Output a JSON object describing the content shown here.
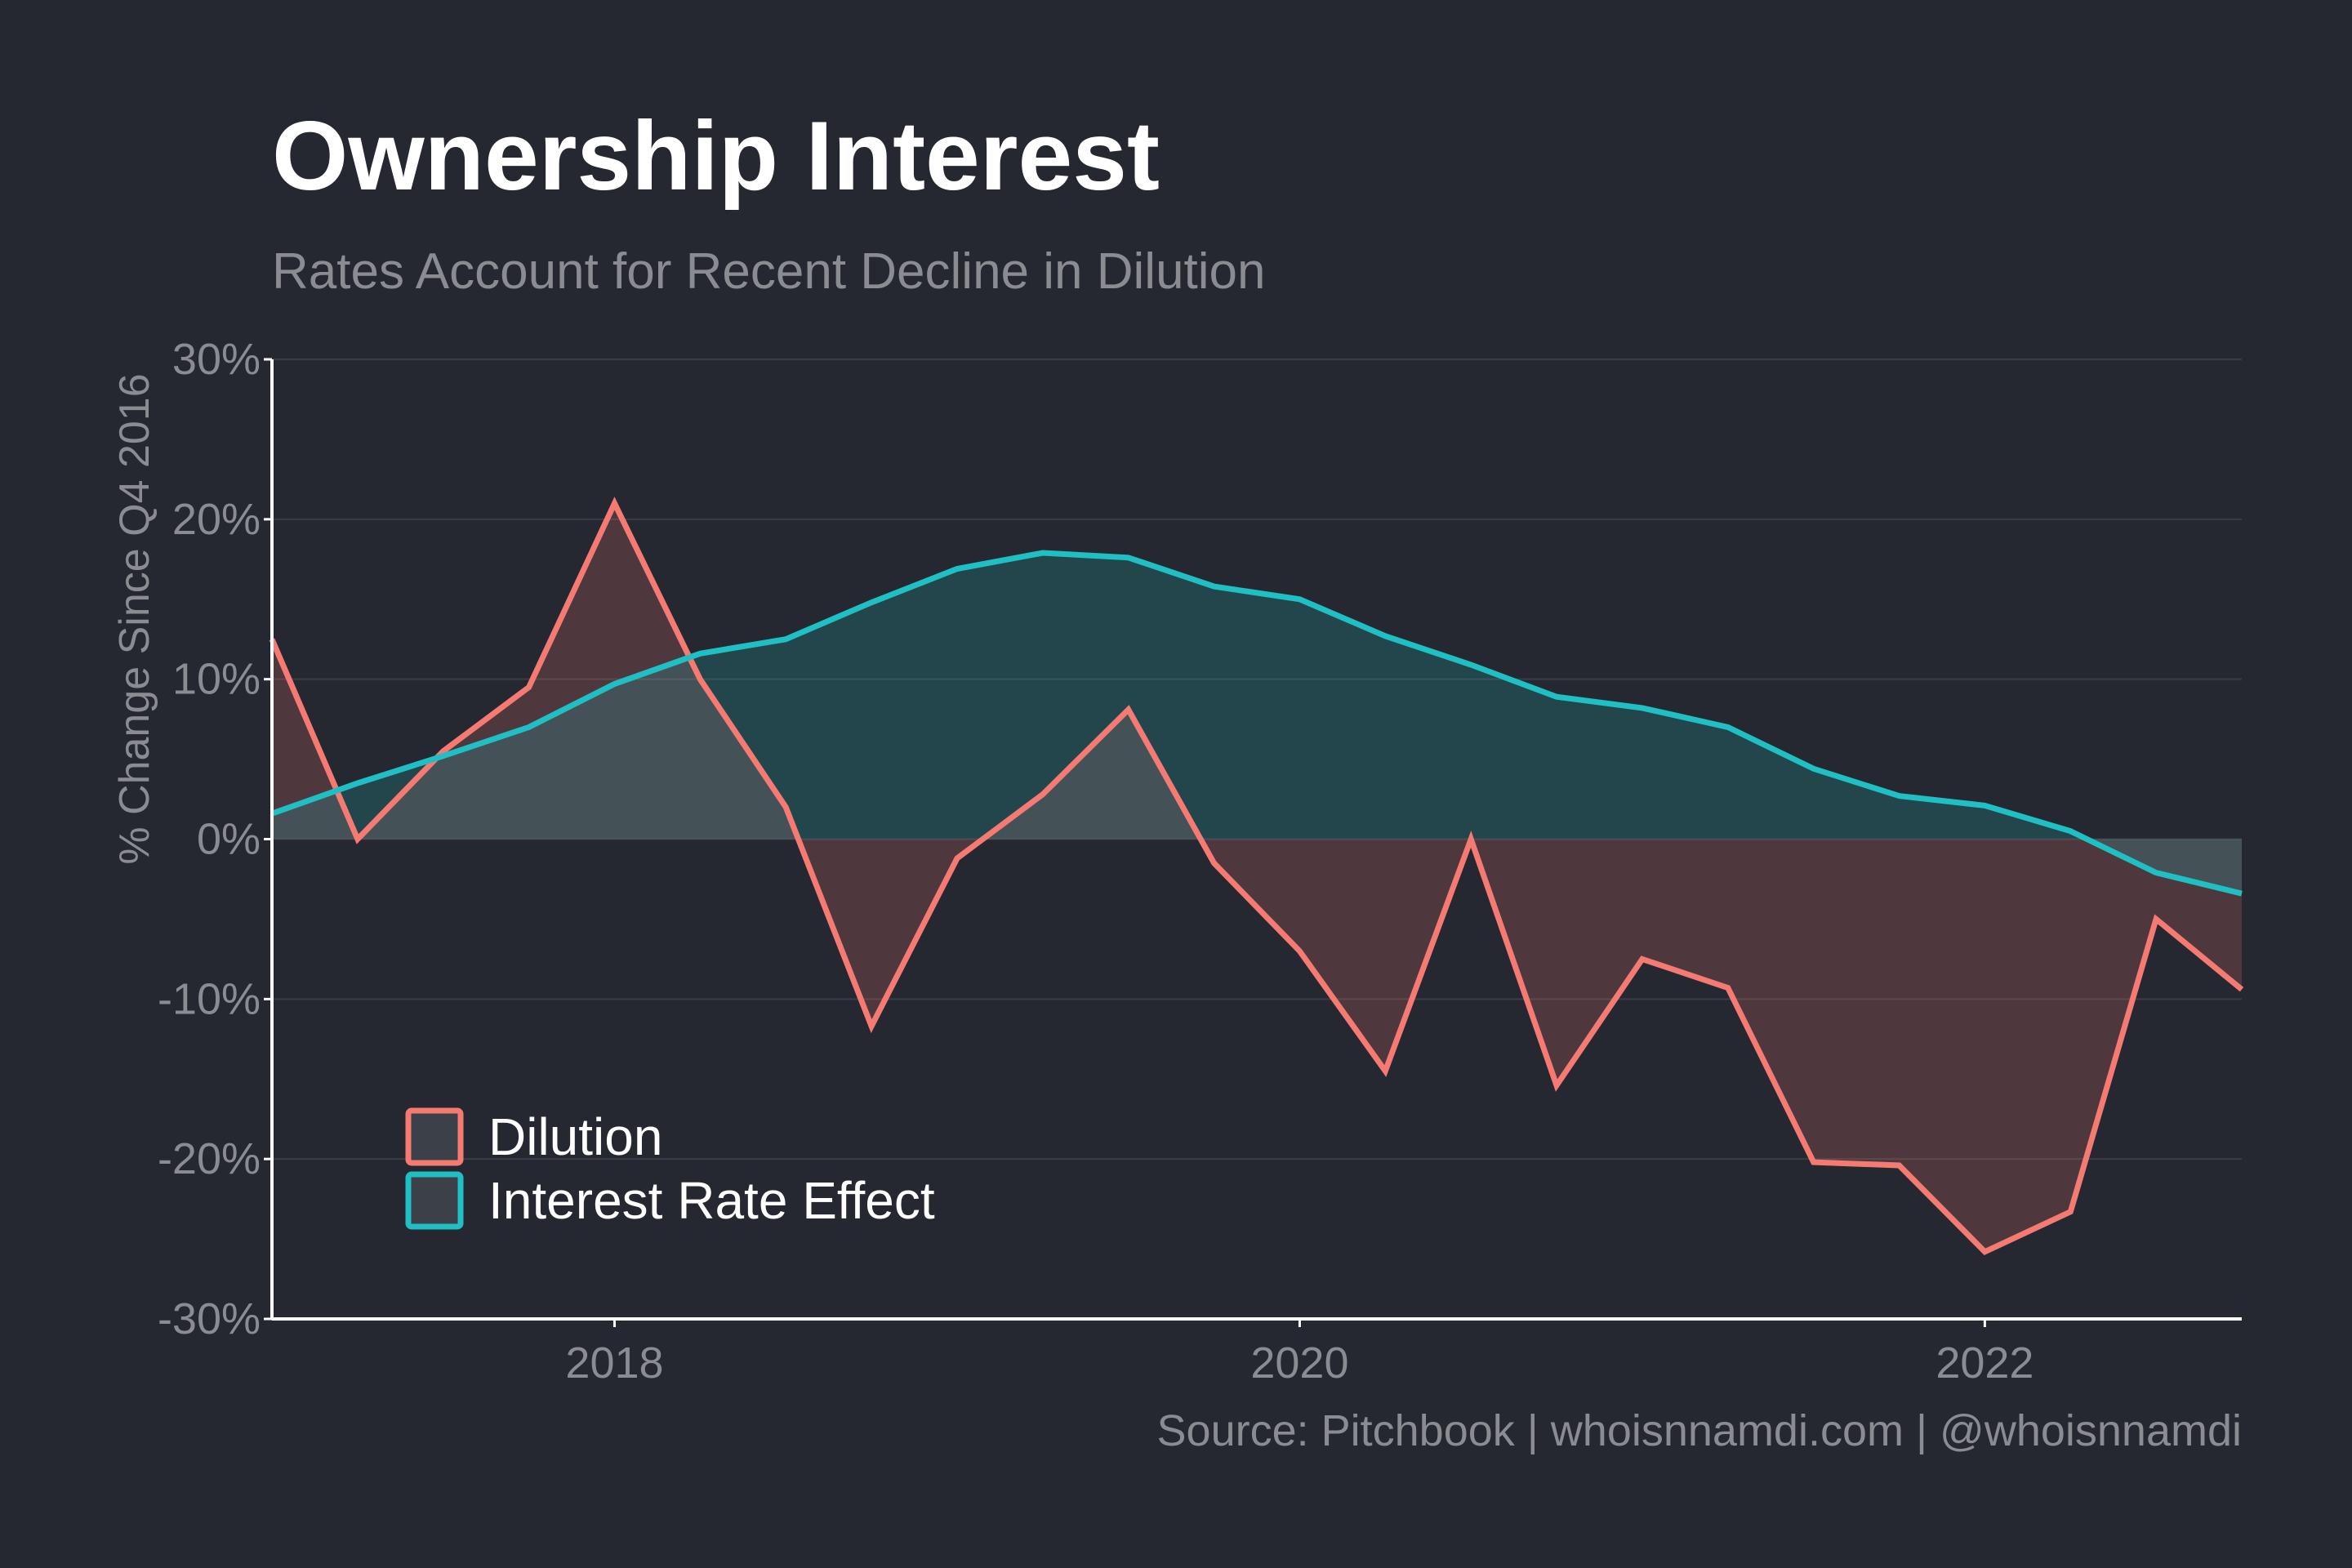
{
  "colors": {
    "background": "#252830",
    "title": "#ffffff",
    "subtitle": "#8a8c92",
    "axis_text": "#8a8c92",
    "axis_line": "#ffffff",
    "grid": "#3a3d45",
    "dilution": "#f47a72",
    "interest": "#1fbfc4",
    "legend_text": "#ffffff",
    "legend_fill": "#3c4048"
  },
  "chart_data": {
    "type": "area",
    "title": "Ownership Interest",
    "subtitle": "Rates Account for Recent Decline in Dilution",
    "ylabel": "% Change Since Q4 2016",
    "xlabel": "",
    "ylim": [
      -30,
      30
    ],
    "xlim": [
      2017.0,
      2022.75
    ],
    "y_ticks": [
      30,
      20,
      10,
      0,
      -10,
      -20,
      -30
    ],
    "y_tick_labels": [
      "30%",
      "20%",
      "10%",
      "0%",
      "-10%",
      "-20%",
      "-30%"
    ],
    "x_ticks": [
      2018,
      2020,
      2022
    ],
    "x_tick_labels": [
      "2018",
      "2020",
      "2022"
    ],
    "grid": true,
    "legend_position": "bottom-left",
    "x": [
      2017.0,
      2017.25,
      2017.5,
      2017.75,
      2018.0,
      2018.25,
      2018.5,
      2018.75,
      2019.0,
      2019.25,
      2019.5,
      2019.75,
      2020.0,
      2020.25,
      2020.5,
      2020.75,
      2021.0,
      2021.25,
      2021.5,
      2021.75,
      2022.0,
      2022.25,
      2022.5,
      2022.75
    ],
    "series": [
      {
        "name": "Dilution",
        "color": "#f47a72",
        "values": [
          12.5,
          0,
          5.5,
          9.5,
          21,
          10,
          2,
          -11.7,
          -1.2,
          2.8,
          8.1,
          -1.5,
          -7,
          -14.5,
          0,
          -15.4,
          -7.5,
          -9.3,
          -20.2,
          -20.4,
          -25.8,
          -23.3,
          -5,
          -9.4
        ]
      },
      {
        "name": "Interest Rate Effect",
        "color": "#1fbfc4",
        "values": [
          1.6,
          3.5,
          5.2,
          7,
          9.7,
          11.6,
          12.5,
          14.8,
          16.9,
          17.9,
          17.6,
          15.8,
          15,
          12.7,
          10.9,
          8.9,
          8.2,
          7,
          4.4,
          2.7,
          2.1,
          0.5,
          -2.1,
          -3.4
        ]
      }
    ],
    "source": "Source: Pitchbook | whoisnnamdi.com | @whoisnnamdi"
  }
}
